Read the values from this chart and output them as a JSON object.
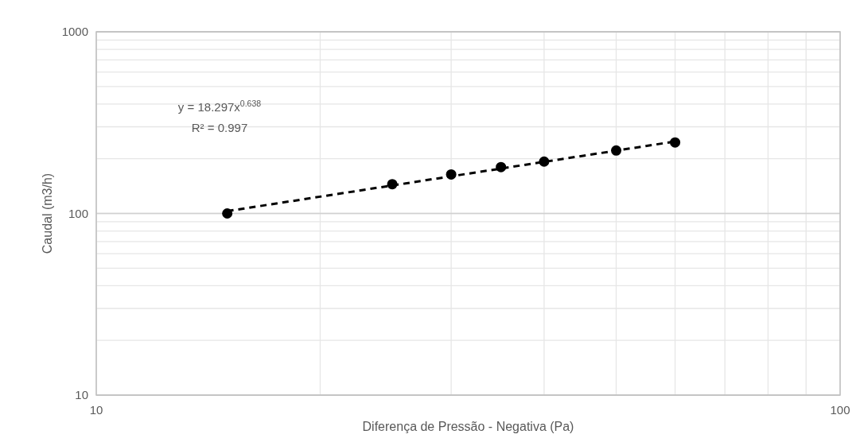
{
  "chart_data": {
    "type": "scatter",
    "xlabel": "Diferença de Pressão - Negativa (Pa)",
    "ylabel": "Caudal (m3/h)",
    "log": "xy",
    "xlim": [
      10,
      100
    ],
    "xticks": [
      10,
      100
    ],
    "ylim": [
      10,
      1000
    ],
    "yticks": [
      10,
      100,
      1000
    ],
    "grid": true,
    "annotations": [
      "y = 18.297x$^{0.638}$",
      "R² = 0.997"
    ],
    "series": [
      {
        "color": "#000000",
        "marker": "circle",
        "x": [
          15,
          25,
          30,
          35,
          40,
          50,
          60
        ],
        "values": [
          100,
          145,
          164,
          180,
          193,
          222,
          246
        ]
      },
      {
        "type": "line",
        "color": "#000000",
        "line_style": "dashed",
        "marker": "none",
        "x": [
          15,
          60
        ],
        "values": [
          103,
          249
        ]
      }
    ]
  }
}
